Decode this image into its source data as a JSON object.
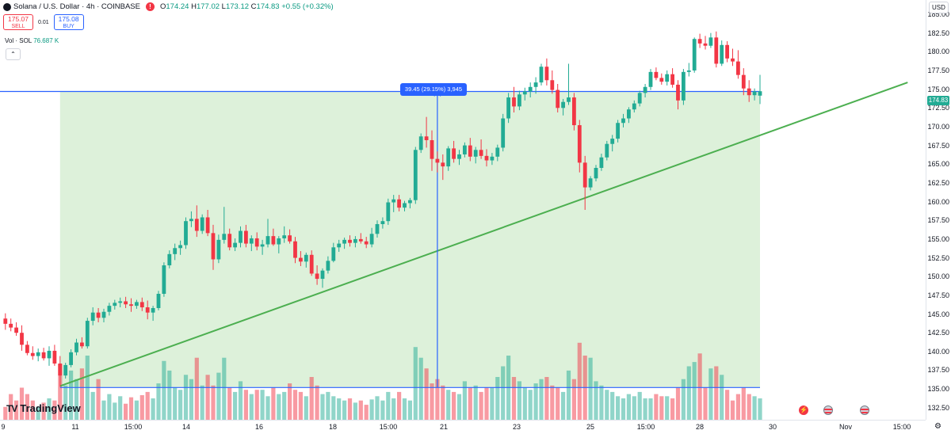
{
  "header": {
    "symbol": "Solana / U.S. Dollar · 4h · COINBASE",
    "alert_icon": "alert-icon",
    "o_label": "O",
    "o_value": "174.24",
    "h_label": "H",
    "h_value": "177.02",
    "l_label": "L",
    "l_value": "173.12",
    "c_label": "C",
    "c_value": "174.83",
    "change": "+0.55 (+0.32%)"
  },
  "trade": {
    "sell_price": "175.07",
    "sell_label": "SELL",
    "spread": "0.01",
    "buy_price": "175.08",
    "buy_label": "BUY"
  },
  "volume_legend": {
    "label": "Vol · SOL",
    "value": "76.687 K"
  },
  "currency": "USD",
  "last_price_tag": "174.83",
  "measure_label": "39.45 (29.15%) 3,945",
  "logo_text": "TradingView",
  "colors": {
    "up": "#22ab94",
    "down": "#f23645",
    "trendline": "#4caf50",
    "measure": "#2962ff",
    "zone_fill": "#d7eed3"
  },
  "chart_data": {
    "type": "candlestick",
    "title": "",
    "interval": "4h",
    "x_ticks": [
      "9",
      "11",
      "15:00",
      "14",
      "16",
      "18",
      "15:00",
      "21",
      "23",
      "25",
      "15:00",
      "28",
      "30",
      "Nov",
      "15:00"
    ],
    "y_ticks": [
      "185.00",
      "182.50",
      "180.00",
      "177.50",
      "175.00",
      "172.50",
      "170.00",
      "167.50",
      "165.00",
      "162.50",
      "160.00",
      "157.50",
      "155.00",
      "152.50",
      "150.00",
      "147.50",
      "145.00",
      "142.50",
      "140.00",
      "137.50",
      "135.00",
      "132.50"
    ],
    "ylim": [
      131.0,
      187.0
    ],
    "grid": false,
    "ohlc": [
      [
        144.5,
        145.2,
        143.0,
        143.8
      ],
      [
        143.8,
        144.5,
        142.8,
        143.3
      ],
      [
        143.3,
        144.0,
        142.2,
        142.6
      ],
      [
        142.6,
        143.6,
        140.2,
        141.0
      ],
      [
        141.0,
        141.5,
        139.6,
        139.9
      ],
      [
        139.9,
        140.8,
        139.0,
        139.5
      ],
      [
        139.5,
        140.5,
        138.8,
        140.0
      ],
      [
        140.0,
        140.6,
        138.9,
        139.2
      ],
      [
        139.2,
        140.8,
        138.2,
        140.2
      ],
      [
        140.2,
        141.0,
        138.2,
        138.5
      ],
      [
        138.5,
        139.5,
        135.4,
        136.9
      ],
      [
        136.9,
        138.6,
        136.5,
        138.3
      ],
      [
        138.3,
        140.4,
        138.0,
        140.0
      ],
      [
        140.0,
        141.8,
        139.6,
        141.3
      ],
      [
        141.3,
        142.0,
        140.5,
        140.8
      ],
      [
        140.8,
        144.6,
        140.5,
        144.2
      ],
      [
        144.2,
        146.0,
        143.6,
        145.3
      ],
      [
        145.3,
        145.9,
        144.0,
        144.6
      ],
      [
        144.6,
        145.8,
        144.0,
        145.4
      ],
      [
        145.4,
        146.6,
        144.9,
        146.2
      ],
      [
        146.2,
        147.0,
        145.7,
        146.6
      ],
      [
        146.6,
        147.3,
        146.0,
        146.8
      ],
      [
        146.8,
        147.4,
        145.9,
        146.4
      ],
      [
        146.4,
        147.2,
        145.4,
        146.2
      ],
      [
        146.2,
        147.0,
        145.8,
        146.7
      ],
      [
        146.7,
        147.3,
        145.5,
        146.0
      ],
      [
        146.0,
        146.9,
        144.4,
        145.3
      ],
      [
        145.3,
        146.2,
        144.2,
        145.9
      ],
      [
        145.9,
        148.2,
        145.6,
        147.8
      ],
      [
        147.8,
        152.0,
        147.4,
        151.6
      ],
      [
        151.6,
        153.6,
        151.2,
        153.1
      ],
      [
        153.1,
        154.5,
        152.3,
        153.9
      ],
      [
        153.9,
        154.9,
        153.0,
        154.3
      ],
      [
        154.3,
        158.0,
        153.8,
        157.5
      ],
      [
        157.5,
        158.8,
        156.7,
        157.8
      ],
      [
        157.8,
        159.6,
        155.4,
        156.2
      ],
      [
        156.2,
        158.4,
        155.8,
        158.0
      ],
      [
        158.0,
        159.0,
        155.5,
        155.9
      ],
      [
        155.9,
        157.0,
        151.0,
        152.4
      ],
      [
        152.4,
        155.7,
        151.9,
        155.0
      ],
      [
        155.0,
        159.4,
        154.5,
        155.8
      ],
      [
        155.8,
        156.5,
        153.6,
        154.0
      ],
      [
        154.0,
        155.2,
        153.5,
        154.6
      ],
      [
        154.6,
        156.8,
        154.0,
        156.2
      ],
      [
        156.2,
        157.0,
        154.0,
        154.5
      ],
      [
        154.5,
        155.6,
        153.5,
        155.2
      ],
      [
        155.2,
        156.0,
        153.6,
        154.1
      ],
      [
        154.1,
        155.0,
        153.0,
        154.4
      ],
      [
        154.4,
        157.8,
        154.0,
        155.5
      ],
      [
        155.5,
        156.5,
        154.2,
        154.4
      ],
      [
        154.4,
        155.5,
        153.2,
        155.2
      ],
      [
        155.2,
        156.8,
        154.6,
        155.6
      ],
      [
        155.6,
        156.4,
        154.5,
        154.8
      ],
      [
        154.8,
        155.4,
        151.9,
        152.6
      ],
      [
        152.6,
        153.5,
        151.5,
        152.1
      ],
      [
        152.1,
        153.3,
        151.3,
        153.0
      ],
      [
        153.0,
        153.6,
        150.2,
        150.5
      ],
      [
        150.5,
        151.6,
        149.0,
        149.8
      ],
      [
        149.8,
        151.2,
        148.6,
        150.9
      ],
      [
        150.9,
        152.8,
        150.5,
        152.2
      ],
      [
        152.2,
        154.6,
        152.0,
        154.0
      ],
      [
        154.0,
        155.0,
        153.4,
        154.5
      ],
      [
        154.5,
        155.3,
        153.8,
        155.0
      ],
      [
        155.0,
        155.6,
        154.1,
        154.6
      ],
      [
        154.6,
        155.5,
        154.0,
        155.1
      ],
      [
        155.1,
        155.9,
        154.5,
        154.8
      ],
      [
        154.8,
        155.4,
        153.9,
        154.4
      ],
      [
        154.4,
        156.6,
        154.0,
        155.8
      ],
      [
        155.8,
        157.6,
        155.3,
        157.1
      ],
      [
        157.1,
        158.0,
        156.5,
        157.5
      ],
      [
        157.5,
        160.5,
        157.0,
        160.0
      ],
      [
        160.0,
        161.0,
        158.7,
        160.4
      ],
      [
        160.4,
        161.0,
        158.8,
        159.3
      ],
      [
        159.3,
        160.2,
        158.8,
        159.9
      ],
      [
        159.9,
        160.6,
        159.2,
        160.3
      ],
      [
        160.3,
        167.4,
        159.8,
        167.0
      ],
      [
        167.0,
        169.2,
        166.6,
        168.8
      ],
      [
        168.8,
        171.4,
        167.3,
        168.3
      ],
      [
        168.3,
        169.6,
        164.2,
        165.8
      ],
      [
        165.8,
        166.8,
        164.0,
        165.3
      ],
      [
        165.3,
        166.4,
        163.0,
        164.8
      ],
      [
        164.8,
        167.5,
        164.2,
        167.2
      ],
      [
        167.2,
        168.2,
        165.3,
        165.8
      ],
      [
        165.8,
        167.0,
        165.0,
        166.4
      ],
      [
        166.4,
        168.0,
        166.0,
        167.6
      ],
      [
        167.6,
        168.6,
        165.5,
        166.1
      ],
      [
        166.1,
        167.4,
        165.2,
        167.0
      ],
      [
        167.0,
        168.4,
        165.8,
        166.2
      ],
      [
        166.2,
        167.1,
        164.8,
        165.6
      ],
      [
        165.6,
        166.6,
        165.0,
        166.1
      ],
      [
        166.1,
        167.7,
        165.5,
        167.3
      ],
      [
        167.3,
        171.8,
        166.8,
        171.2
      ],
      [
        171.2,
        174.6,
        170.6,
        174.0
      ],
      [
        174.0,
        175.4,
        172.0,
        172.8
      ],
      [
        172.8,
        174.9,
        172.3,
        174.4
      ],
      [
        174.4,
        175.3,
        173.6,
        174.8
      ],
      [
        174.8,
        176.0,
        174.0,
        175.4
      ],
      [
        175.4,
        176.7,
        174.5,
        176.0
      ],
      [
        176.0,
        178.5,
        175.6,
        178.1
      ],
      [
        178.1,
        179.2,
        175.6,
        176.3
      ],
      [
        176.3,
        177.6,
        174.5,
        175.0
      ],
      [
        175.0,
        175.8,
        172.0,
        172.6
      ],
      [
        172.6,
        173.8,
        171.6,
        173.4
      ],
      [
        173.4,
        178.5,
        173.0,
        174.0
      ],
      [
        174.0,
        174.6,
        169.6,
        170.3
      ],
      [
        170.3,
        171.0,
        164.0,
        165.3
      ],
      [
        165.3,
        166.2,
        159.0,
        162.0
      ],
      [
        162.0,
        163.5,
        161.6,
        163.2
      ],
      [
        163.2,
        165.0,
        162.8,
        164.6
      ],
      [
        164.6,
        166.5,
        164.2,
        166.0
      ],
      [
        166.0,
        168.2,
        165.6,
        167.8
      ],
      [
        167.8,
        169.0,
        166.8,
        168.5
      ],
      [
        168.5,
        171.0,
        168.0,
        170.6
      ],
      [
        170.6,
        171.8,
        170.0,
        171.2
      ],
      [
        171.2,
        172.7,
        170.6,
        172.4
      ],
      [
        172.4,
        173.6,
        172.0,
        173.2
      ],
      [
        173.2,
        174.9,
        172.8,
        174.6
      ],
      [
        174.6,
        175.8,
        174.0,
        175.4
      ],
      [
        175.4,
        177.8,
        175.0,
        177.4
      ],
      [
        177.4,
        178.0,
        176.3,
        176.6
      ],
      [
        176.6,
        177.2,
        175.7,
        176.1
      ],
      [
        176.1,
        177.6,
        175.6,
        177.1
      ],
      [
        177.1,
        177.9,
        175.3,
        175.7
      ],
      [
        175.7,
        176.3,
        172.4,
        173.6
      ],
      [
        173.6,
        177.8,
        173.0,
        177.4
      ],
      [
        177.4,
        178.6,
        176.8,
        177.6
      ],
      [
        177.6,
        182.0,
        177.3,
        181.8
      ],
      [
        181.8,
        182.5,
        180.6,
        181.2
      ],
      [
        181.2,
        182.2,
        180.4,
        180.9
      ],
      [
        180.9,
        182.6,
        180.6,
        182.0
      ],
      [
        182.0,
        182.8,
        178.0,
        178.5
      ],
      [
        178.5,
        181.6,
        178.2,
        181.0
      ],
      [
        181.0,
        181.5,
        178.7,
        179.2
      ],
      [
        179.2,
        180.5,
        178.2,
        178.8
      ],
      [
        178.8,
        180.3,
        176.5,
        177.0
      ],
      [
        177.0,
        177.9,
        174.3,
        175.2
      ],
      [
        175.2,
        176.3,
        173.4,
        174.3
      ],
      [
        174.3,
        175.2,
        173.6,
        174.8
      ],
      [
        174.24,
        177.02,
        173.12,
        174.83
      ]
    ],
    "volume_scale_max": 10.0,
    "volume": [
      1.2,
      2.4,
      1.8,
      3.0,
      2.4,
      1.8,
      1.2,
      1.6,
      2.0,
      1.8,
      5.2,
      3.2,
      4.6,
      3.8,
      4.8,
      6.0,
      2.6,
      3.8,
      1.8,
      2.4,
      1.6,
      2.2,
      1.5,
      2.1,
      1.8,
      2.3,
      2.6,
      2.0,
      3.4,
      5.5,
      4.6,
      3.0,
      2.8,
      4.2,
      3.8,
      5.8,
      3.2,
      4.2,
      3.2,
      4.4,
      5.8,
      3.0,
      2.6,
      3.6,
      2.8,
      2.4,
      2.8,
      2.8,
      2.2,
      3.0,
      2.4,
      2.6,
      3.4,
      2.8,
      2.6,
      2.2,
      4.0,
      3.2,
      2.4,
      2.6,
      2.2,
      2.0,
      1.8,
      2.0,
      1.6,
      1.8,
      1.4,
      1.9,
      2.2,
      1.8,
      2.6,
      2.0,
      2.6,
      2.0,
      1.8,
      6.8,
      5.8,
      4.8,
      3.4,
      3.8,
      3.2,
      2.8,
      2.6,
      2.4,
      3.6,
      3.0,
      3.2,
      2.6,
      3.0,
      3.0,
      4.0,
      5.0,
      6.0,
      4.0,
      3.6,
      3.0,
      2.8,
      3.4,
      3.8,
      4.0,
      3.2,
      3.0,
      2.6,
      4.6,
      3.8,
      7.2,
      6.0,
      5.8,
      3.6,
      3.2,
      2.8,
      2.6,
      2.2,
      2.0,
      2.4,
      2.2,
      2.6,
      2.0,
      2.0,
      2.4,
      2.2,
      2.2,
      2.0,
      3.0,
      3.8,
      5.0,
      5.4,
      6.2,
      3.0,
      4.8,
      5.0,
      4.2,
      2.8,
      1.8,
      2.4,
      3.0,
      2.4,
      2.2,
      2.0
    ],
    "drawings": {
      "range_zone": {
        "from_bar": 10,
        "to_bar": 138,
        "low": 135.3,
        "high": 174.8
      },
      "trendline": {
        "from_bar": 10,
        "from_price": 135.5,
        "to_bar": 165,
        "to_price": 176.0
      },
      "measure_arrow": {
        "bar": 79,
        "from": 135.3,
        "to": 174.8
      }
    }
  }
}
